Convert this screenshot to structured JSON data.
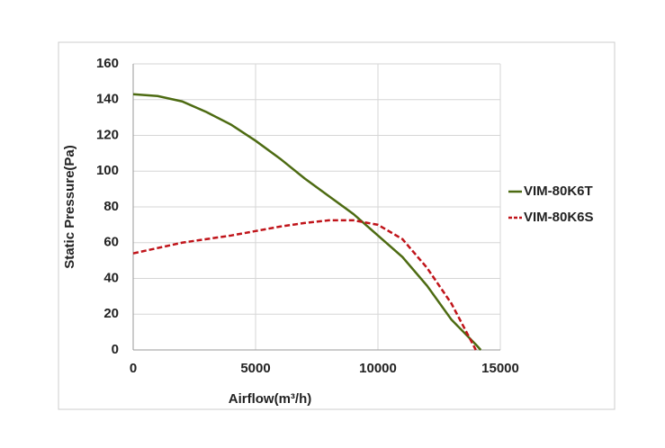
{
  "chart_data": {
    "type": "line",
    "x_label": "Airflow(m³/h)",
    "y_label": "Static Pressure(Pa)",
    "x": [
      0,
      1000,
      2000,
      3000,
      4000,
      5000,
      6000,
      7000,
      8000,
      9000,
      10000,
      11000,
      12000,
      13000,
      14000,
      14200
    ],
    "series": [
      {
        "name": "VIM-80K6T",
        "color": "#4d6b12",
        "dashed": false,
        "values": [
          143,
          142,
          139,
          133,
          126,
          117,
          107,
          96,
          86,
          76,
          64,
          52,
          36,
          17,
          3,
          0
        ]
      },
      {
        "name": "VIM-80K6S",
        "color": "#c0141a",
        "dashed": true,
        "values": [
          54,
          57,
          60,
          62,
          64,
          66.5,
          69,
          71,
          72.5,
          72.5,
          70,
          62,
          46,
          26,
          0,
          null
        ]
      }
    ],
    "xlim": [
      0,
      15000
    ],
    "xticks": [
      0,
      5000,
      10000,
      15000
    ],
    "ylim": [
      0,
      160
    ],
    "yticks": [
      0,
      20,
      40,
      60,
      80,
      100,
      120,
      140,
      160
    ],
    "grid": true,
    "legend": "right"
  }
}
